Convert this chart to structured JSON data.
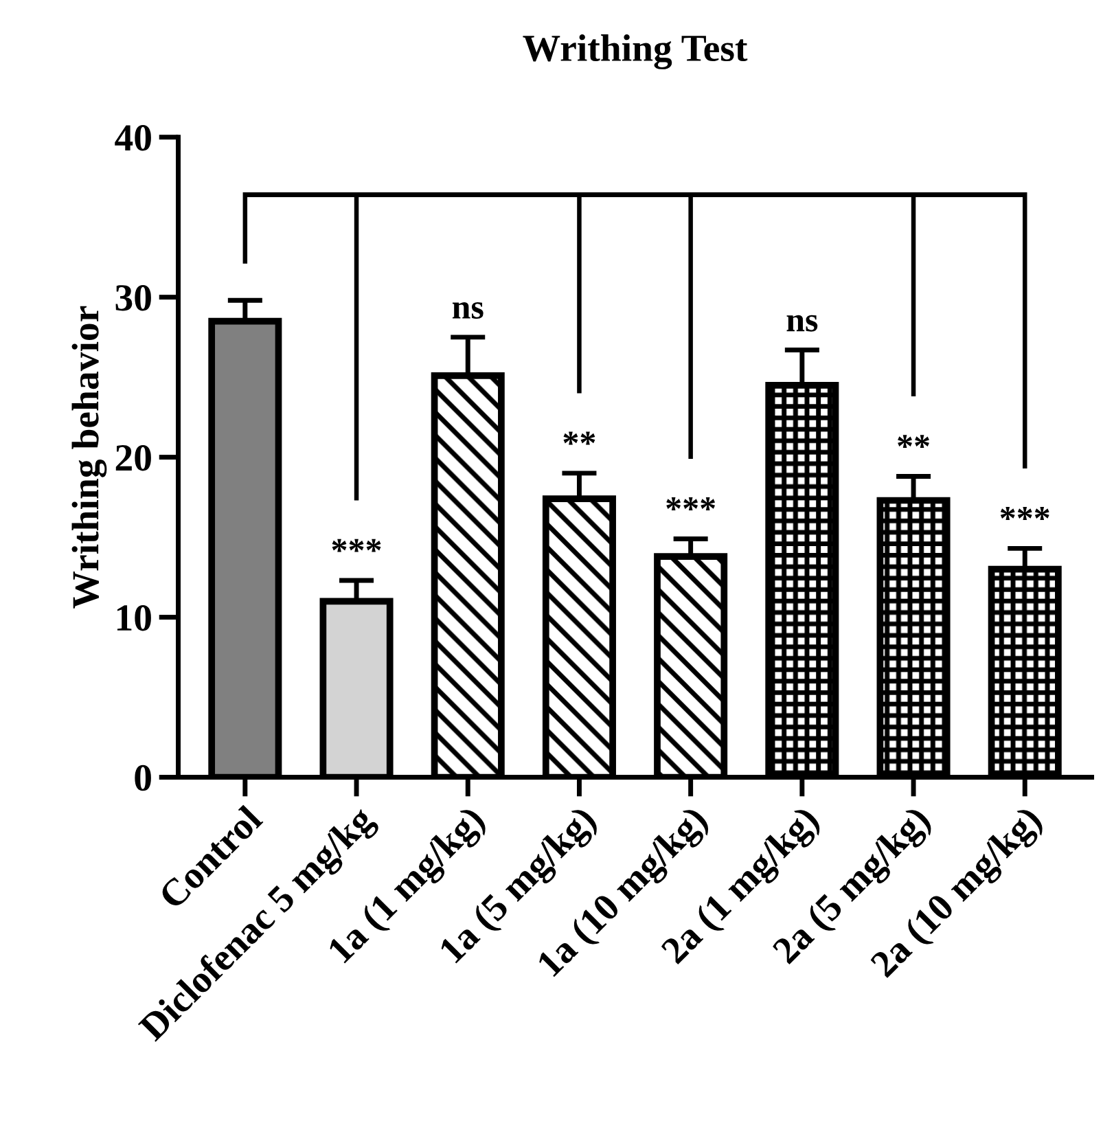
{
  "chart_data": {
    "type": "bar",
    "title": "Writhing Test",
    "ylabel": "Writhing behavior",
    "categories": [
      "Control",
      "Diclofenac 5 mg/kg",
      "1a (1 mg/kg)",
      "1a (5 mg/kg)",
      "1a (10 mg/kg)",
      "2a (1 mg/kg)",
      "2a (5 mg/kg)",
      "2a (10 mg/kg)"
    ],
    "values": [
      28.5,
      11.0,
      25.1,
      17.4,
      13.8,
      24.5,
      17.3,
      13.0
    ],
    "errors": [
      [
        28.5,
        29.8
      ],
      [
        11.0,
        12.3
      ],
      [
        25.1,
        27.5
      ],
      [
        17.4,
        19.0
      ],
      [
        13.8,
        14.9
      ],
      [
        24.5,
        26.7
      ],
      [
        17.3,
        18.8
      ],
      [
        13.0,
        14.3
      ]
    ],
    "colors": [
      "#808080",
      "#d3d3d3",
      "#000000",
      "#000000",
      "#000000",
      "#000000",
      "#000000",
      "#000000"
    ],
    "ylim": [
      0,
      40
    ],
    "yticks": [
      0,
      10,
      20,
      30,
      40
    ],
    "grid": false,
    "legend": false,
    "annotations": [
      {
        "text": "***",
        "x": "Diclofenac 5 mg/kg",
        "y": 12.3
      },
      {
        "text": "ns",
        "x": "1a (1 mg/kg)",
        "y": 27.5
      },
      {
        "text": "**",
        "x": "1a (5 mg/kg)",
        "y": 19.0
      },
      {
        "text": "***",
        "x": "1a (10 mg/kg)",
        "y": 14.9
      },
      {
        "text": "ns",
        "x": "2a (1 mg/kg)",
        "y": 26.7
      },
      {
        "text": "**",
        "x": "2a (5 mg/kg)",
        "y": 18.8
      },
      {
        "text": "***",
        "x": "2a (10 mg/kg)",
        "y": 14.3
      }
    ]
  }
}
